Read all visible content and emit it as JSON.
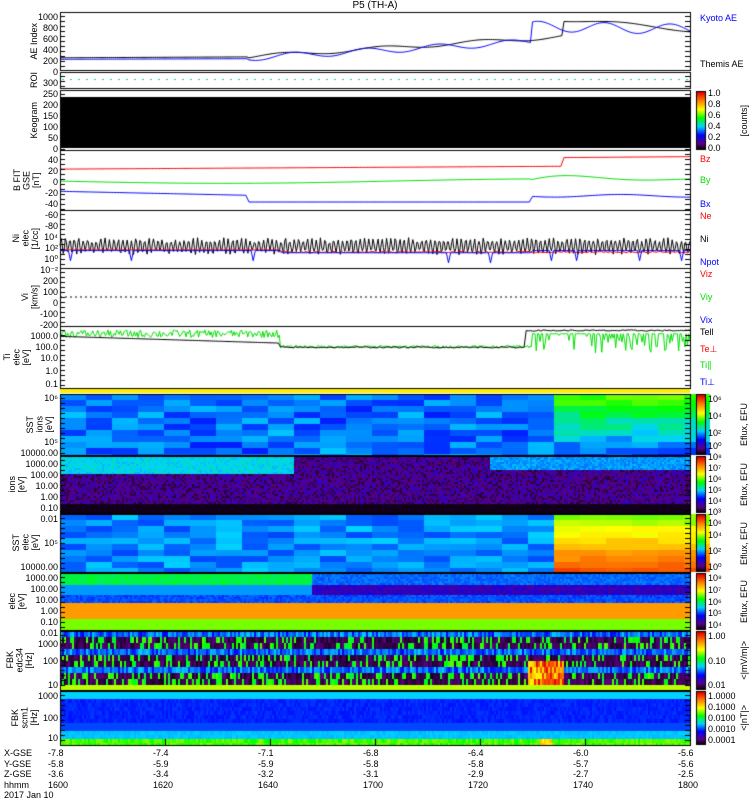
{
  "title": "P5 (TH-A)",
  "panels": [
    {
      "id": "ae",
      "ylabel": [
        "AE Index"
      ],
      "ticks": [
        "1000",
        "800",
        "600",
        "400",
        "200",
        "0"
      ],
      "legend": [
        {
          "text": "Kyoto AE",
          "color": "#0000ff"
        },
        {
          "text": "Themis AE",
          "color": "#000000"
        }
      ]
    },
    {
      "id": "roi",
      "ylabel": [
        "ROI"
      ],
      "ticks": [],
      "legend": []
    },
    {
      "id": "keogram",
      "ylabel": [
        "Keogram"
      ],
      "ticks": [
        "300",
        "250",
        "200",
        "150",
        "100",
        "50",
        "0"
      ],
      "legend": [],
      "colorbar": {
        "ticks": [
          "1.0",
          "0.8",
          "0.6",
          "0.4",
          "0.2",
          "0.0"
        ],
        "label": "[counts]"
      }
    },
    {
      "id": "bfield",
      "ylabel": [
        "B FIT",
        "GSE",
        "[nT]"
      ],
      "ticks": [
        "40",
        "20",
        "0",
        "-20",
        "-40",
        "-60",
        "-80"
      ],
      "legend": [
        {
          "text": "Bz",
          "color": "#ff0000"
        },
        {
          "text": "By",
          "color": "#00dd00"
        },
        {
          "text": "Bx",
          "color": "#0000ff"
        }
      ]
    },
    {
      "id": "density",
      "ylabel": [
        "Ni",
        "elec",
        "[1/cc]"
      ],
      "ticks": [
        "10⁴",
        "10²",
        "10⁰",
        "10⁻²"
      ],
      "legend": [
        {
          "text": "Ne",
          "color": "#ff0000"
        },
        {
          "text": "Ni",
          "color": "#000000"
        },
        {
          "text": "Npot",
          "color": "#0000ff"
        }
      ]
    },
    {
      "id": "velocity",
      "ylabel": [
        "Vi",
        "[km/s]"
      ],
      "ticks": [
        "200",
        "100",
        "0",
        "-100",
        "-200"
      ],
      "legend": [
        {
          "text": "Viz",
          "color": "#ff0000"
        },
        {
          "text": "Viy",
          "color": "#00dd00"
        },
        {
          "text": "Vix",
          "color": "#0000ff"
        }
      ]
    },
    {
      "id": "temperature",
      "ylabel": [
        "Ti",
        "elec",
        "[eV]"
      ],
      "ticks": [
        "1000.0",
        "100.0",
        "10.0",
        "1.0",
        "0.1"
      ],
      "legend": [
        {
          "text": "Tell",
          "color": "#000000"
        },
        {
          "text": "Te⊥",
          "color": "#ff0000"
        },
        {
          "text": "Ti∥",
          "color": "#00dd00"
        },
        {
          "text": "Ti⊥",
          "color": "#0000ff"
        }
      ]
    },
    {
      "id": "sst-ion",
      "ylabel": [
        "SST",
        "ions",
        "[eV]"
      ],
      "ticks": [
        "10⁶",
        "10⁵"
      ],
      "legend": [],
      "colorbar": {
        "ticks": [
          "10⁶",
          "10⁴",
          "10²",
          "10⁰"
        ],
        "label": "Eflux, EFU"
      }
    },
    {
      "id": "esa-ion",
      "ylabel": [
        "ions",
        "[eV]"
      ],
      "ticks": [
        "10000.00",
        "1000.00",
        "100.00",
        "10.00",
        "1.00",
        "0.10",
        "0.01"
      ],
      "legend": [],
      "colorbar": {
        "ticks": [
          "10⁸",
          "10⁷",
          "10⁶",
          "10⁵",
          "10⁴",
          "10³"
        ],
        "label": "Eflux, EFU"
      }
    },
    {
      "id": "sst-elec",
      "ylabel": [
        "SST",
        "elec",
        "[eV]"
      ],
      "ticks": [
        "10⁵"
      ],
      "legend": [],
      "colorbar": {
        "ticks": [
          "10⁶",
          "10⁴",
          "10²",
          "10⁰"
        ],
        "label": "Eflux, EFU"
      }
    },
    {
      "id": "esa-elec",
      "ylabel": [
        "elec",
        "[eV]"
      ],
      "ticks": [
        "10000.00",
        "1000.00",
        "100.00",
        "10.00",
        "1.00",
        "0.10",
        "0.01"
      ],
      "legend": [],
      "colorbar": {
        "ticks": [
          "10⁸",
          "10⁷",
          "10⁶",
          "10⁵",
          "10⁴"
        ],
        "label": "Eflux, EFU"
      }
    },
    {
      "id": "fbk-edc",
      "ylabel": [
        "FBK",
        "edc34",
        "[Hz]"
      ],
      "ticks": [
        "1000",
        "100",
        "10"
      ],
      "legend": [],
      "colorbar": {
        "ticks": [
          "1.00",
          "0.10",
          "0.01"
        ],
        "label": "<|mV/m|>"
      }
    },
    {
      "id": "fbk-scm",
      "ylabel": [
        "FBK",
        "scm1",
        "[Hz]"
      ],
      "ticks": [
        "1000",
        "100",
        "10"
      ],
      "legend": [],
      "colorbar": {
        "ticks": [
          "1.0000",
          "0.1000",
          "0.0100",
          "0.0010",
          "0.0001"
        ],
        "label": "<|nT|>"
      }
    }
  ],
  "xaxis": {
    "rows": [
      {
        "label": "X-GSE",
        "values": [
          "-7.8",
          "-7.4",
          "-7.1",
          "-6.8",
          "-6.4",
          "-6.0",
          "-5.6"
        ]
      },
      {
        "label": "Y-GSE",
        "values": [
          "-5.8",
          "-5.9",
          "-5.9",
          "-5.8",
          "-5.8",
          "-5.7",
          "-5.6"
        ]
      },
      {
        "label": "Z-GSE",
        "values": [
          "-3.6",
          "-3.4",
          "-3.2",
          "-3.1",
          "-2.9",
          "-2.7",
          "-2.5"
        ]
      },
      {
        "label": "hhmm",
        "values": [
          "1600",
          "1620",
          "1640",
          "1700",
          "1720",
          "1740",
          "1800"
        ]
      }
    ],
    "date": "2017 Jan 10"
  },
  "chart_data": {
    "type": "line",
    "title": "P5 (TH-A)",
    "x": [
      "16:00",
      "16:20",
      "16:40",
      "17:00",
      "17:20",
      "17:40",
      "18:00"
    ],
    "series": [
      {
        "name": "Kyoto AE",
        "values": [
          180,
          200,
          260,
          380,
          450,
          850,
          700
        ]
      },
      {
        "name": "Themis AE",
        "values": [
          220,
          210,
          300,
          400,
          420,
          900,
          800
        ]
      }
    ],
    "ylabel": "AE Index",
    "ylim": [
      0,
      1100
    ]
  }
}
